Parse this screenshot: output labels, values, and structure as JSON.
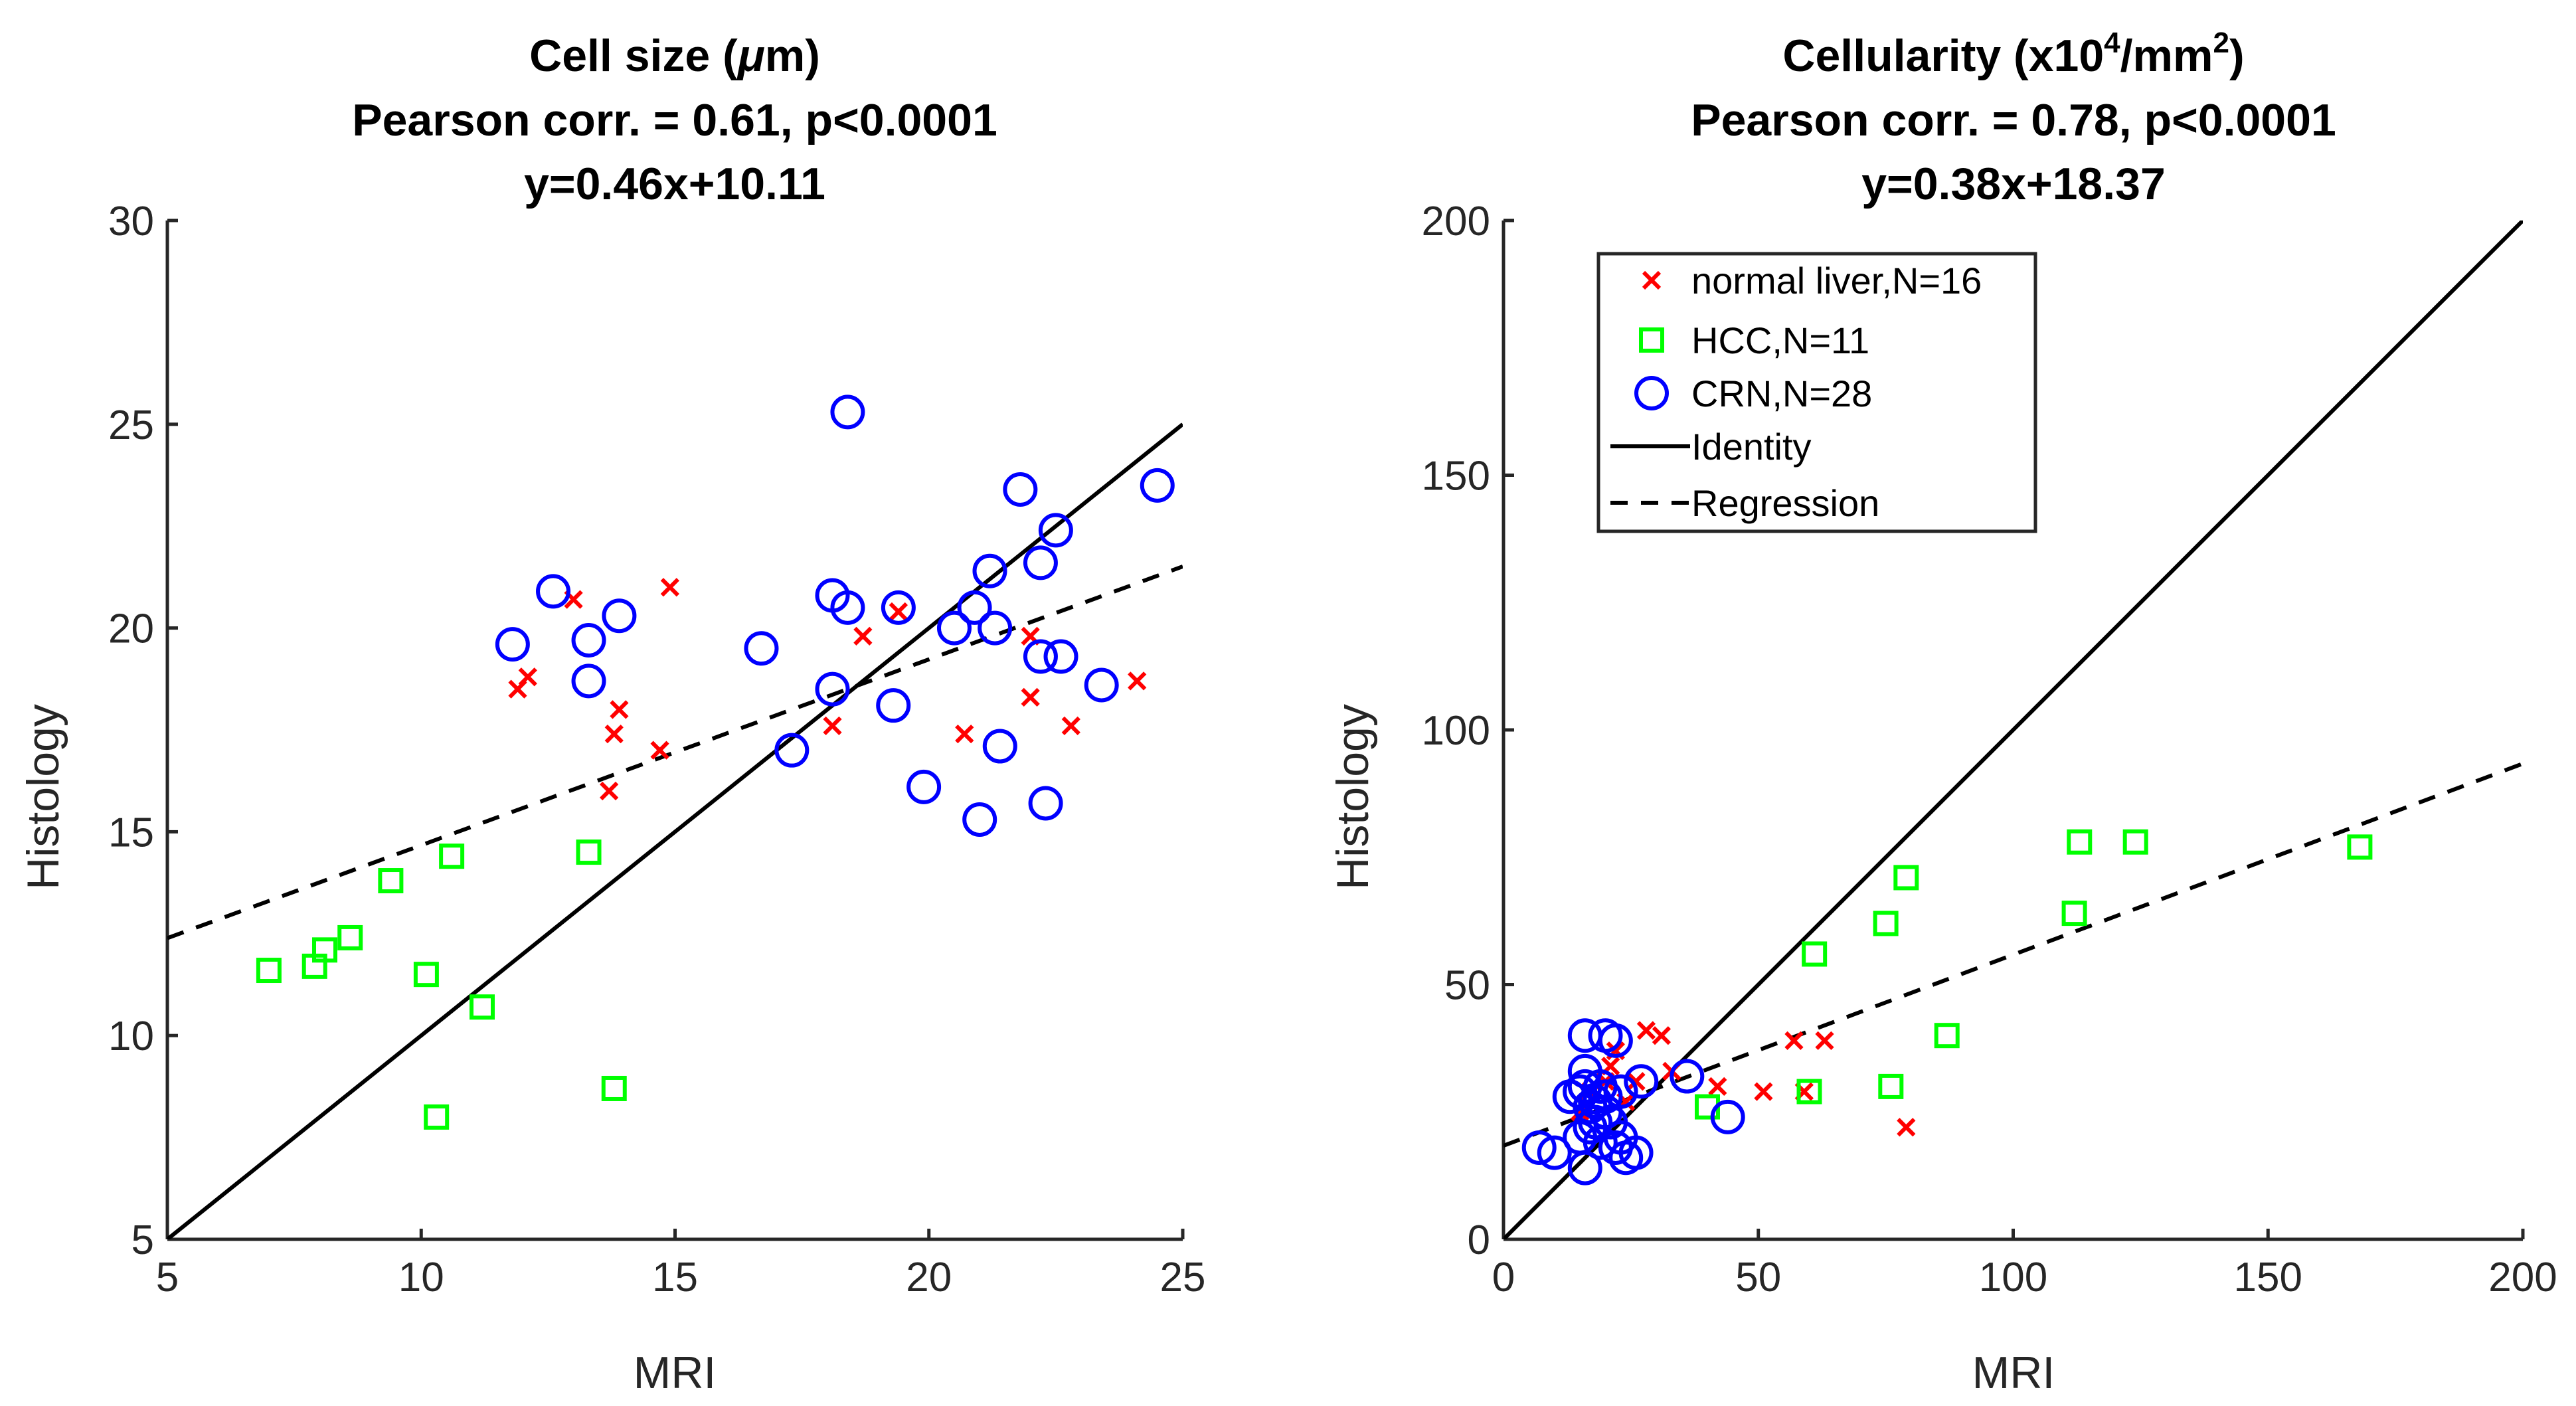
{
  "chart_data": [
    {
      "type": "scatter",
      "title": {
        "line1_pre": "Cell size (",
        "line1_greek": "μ",
        "line1_post": "m)",
        "line2": "Pearson corr. = 0.61, p<0.0001",
        "line3": "y=0.46x+10.11"
      },
      "xlabel": "MRI",
      "ylabel": "Histology",
      "xlim": [
        5,
        25
      ],
      "ylim": [
        5,
        30
      ],
      "xticks": [
        5,
        10,
        15,
        20,
        25
      ],
      "yticks": [
        5,
        10,
        15,
        20,
        25,
        30
      ],
      "identity": {
        "x": [
          5,
          25
        ]
      },
      "regression": {
        "slope": 0.456,
        "intercept": 10.11,
        "x": [
          5,
          25
        ]
      },
      "series": [
        {
          "name": "normal liver",
          "marker": "x",
          "color": "#ff0000",
          "points": [
            [
              11.9,
              18.5
            ],
            [
              12.1,
              18.8
            ],
            [
              13.0,
              20.7
            ],
            [
              13.7,
              16.0
            ],
            [
              13.8,
              17.4
            ],
            [
              13.9,
              18.0
            ],
            [
              14.7,
              17.0
            ],
            [
              14.9,
              21.0
            ],
            [
              18.1,
              17.6
            ],
            [
              18.7,
              19.8
            ],
            [
              19.4,
              20.4
            ],
            [
              20.7,
              17.4
            ],
            [
              22.0,
              19.8
            ],
            [
              22.0,
              18.3
            ],
            [
              22.8,
              17.6
            ],
            [
              24.1,
              18.7
            ]
          ]
        },
        {
          "name": "HCC",
          "marker": "square",
          "color": "#00ff00",
          "points": [
            [
              7.0,
              11.6
            ],
            [
              7.9,
              11.7
            ],
            [
              8.1,
              12.1
            ],
            [
              8.6,
              12.4
            ],
            [
              9.4,
              13.8
            ],
            [
              10.1,
              11.5
            ],
            [
              10.3,
              8.0
            ],
            [
              10.6,
              14.4
            ],
            [
              11.2,
              10.7
            ],
            [
              13.3,
              14.5
            ],
            [
              13.8,
              8.7
            ]
          ]
        },
        {
          "name": "CRN",
          "marker": "circle",
          "color": "#0000ff",
          "points": [
            [
              11.8,
              19.6
            ],
            [
              12.6,
              20.9
            ],
            [
              13.3,
              19.7
            ],
            [
              13.3,
              18.7
            ],
            [
              13.9,
              20.3
            ],
            [
              16.7,
              19.5
            ],
            [
              17.3,
              17.0
            ],
            [
              18.1,
              18.5
            ],
            [
              18.1,
              20.8
            ],
            [
              18.4,
              25.3
            ],
            [
              18.4,
              20.5
            ],
            [
              19.3,
              18.1
            ],
            [
              19.4,
              20.5
            ],
            [
              19.9,
              16.1
            ],
            [
              20.5,
              20.0
            ],
            [
              20.9,
              20.5
            ],
            [
              21.0,
              15.3
            ],
            [
              21.2,
              21.4
            ],
            [
              21.3,
              20.0
            ],
            [
              21.4,
              17.1
            ],
            [
              21.8,
              23.4
            ],
            [
              22.2,
              21.6
            ],
            [
              22.2,
              19.3
            ],
            [
              22.3,
              15.7
            ],
            [
              22.5,
              22.4
            ],
            [
              22.6,
              19.3
            ],
            [
              23.4,
              18.6
            ],
            [
              24.5,
              23.5
            ]
          ]
        }
      ]
    },
    {
      "type": "scatter",
      "title": {
        "line1_pre": "Cellularity (x10",
        "line1_sup1": "4",
        "line1_mid": "/mm",
        "line1_sup2": "2",
        "line1_post": ")",
        "line2": "Pearson corr. = 0.78, p<0.0001",
        "line3": "y=0.38x+18.37"
      },
      "xlabel": "MRI",
      "ylabel": "Histology",
      "xlim": [
        0,
        200
      ],
      "ylim": [
        0,
        200
      ],
      "xticks": [
        0,
        50,
        100,
        150,
        200
      ],
      "yticks": [
        0,
        50,
        100,
        150,
        200
      ],
      "identity": {
        "x": [
          0,
          200
        ]
      },
      "regression": {
        "slope": 0.375,
        "intercept": 18.37,
        "x": [
          0,
          200
        ]
      },
      "legend": {
        "position": "top-left",
        "entries": [
          "normal liver,N=16",
          "HCC,N=11",
          "CRN,N=28",
          "Identity",
          "Regression"
        ]
      },
      "series": [
        {
          "name": "normal liver",
          "marker": "x",
          "color": "#ff0000",
          "points": [
            [
              15,
              25
            ],
            [
              17,
              29
            ],
            [
              20,
              31
            ],
            [
              21,
              34
            ],
            [
              24,
              27
            ],
            [
              26,
              31
            ],
            [
              28,
              41
            ],
            [
              31,
              40
            ],
            [
              33,
              33
            ],
            [
              42,
              30
            ],
            [
              51,
              29
            ],
            [
              57,
              39
            ],
            [
              59,
              29
            ],
            [
              63,
              39
            ],
            [
              79,
              22
            ],
            [
              22,
              37
            ]
          ]
        },
        {
          "name": "HCC",
          "marker": "square",
          "color": "#00ff00",
          "points": [
            [
              40,
              26
            ],
            [
              60,
              29
            ],
            [
              61,
              56
            ],
            [
              75,
              62
            ],
            [
              76,
              30
            ],
            [
              79,
              71
            ],
            [
              87,
              40
            ],
            [
              112,
              64
            ],
            [
              113,
              78
            ],
            [
              124,
              78
            ],
            [
              168,
              77
            ]
          ]
        },
        {
          "name": "CRN",
          "marker": "circle",
          "color": "#0000ff",
          "points": [
            [
              7,
              18
            ],
            [
              10,
              17
            ],
            [
              13,
              28
            ],
            [
              15,
              29
            ],
            [
              15,
              20
            ],
            [
              16,
              40
            ],
            [
              16,
              33
            ],
            [
              16,
              30
            ],
            [
              16,
              14
            ],
            [
              17,
              22
            ],
            [
              17,
              26
            ],
            [
              18,
              23
            ],
            [
              18,
              27
            ],
            [
              19,
              19
            ],
            [
              19,
              30
            ],
            [
              20,
              40
            ],
            [
              20,
              25
            ],
            [
              20,
              28
            ],
            [
              21,
              23
            ],
            [
              22,
              39
            ],
            [
              22,
              18
            ],
            [
              23,
              20
            ],
            [
              23,
              29
            ],
            [
              24,
              16
            ],
            [
              26,
              17
            ],
            [
              27,
              31
            ],
            [
              36,
              32
            ],
            [
              44,
              24
            ]
          ]
        }
      ]
    }
  ]
}
